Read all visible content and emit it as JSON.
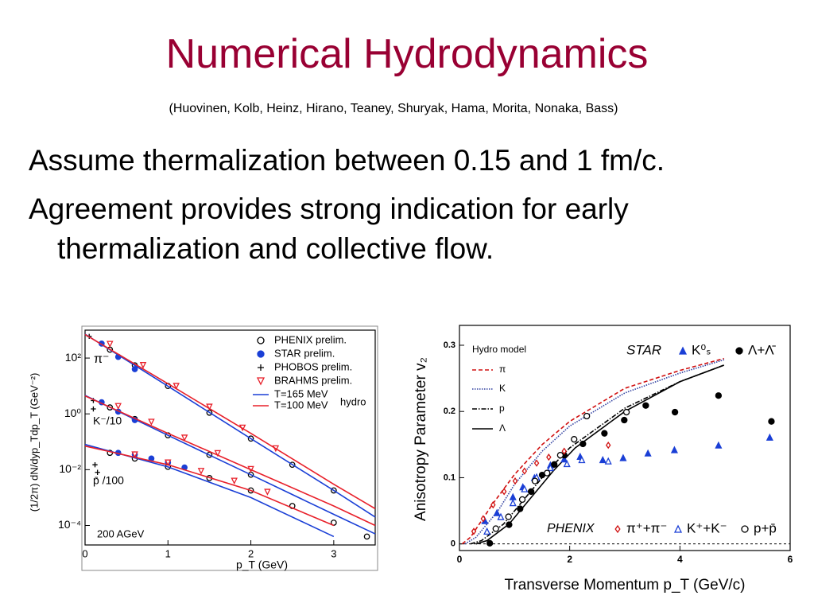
{
  "slide": {
    "title": "Numerical Hydrodynamics",
    "subtitle": "(Huovinen, Kolb, Heinz, Hirano, Teaney, Shuryak, Hama, Morita, Nonaka, Bass)",
    "bullets": [
      "Assume thermalization between 0.15 and 1 fm/c.",
      "Agreement provides strong indication for early thermalization and collective flow."
    ]
  },
  "chart_data": [
    {
      "type": "scatter",
      "log_y": true,
      "legend": "upper right",
      "xlabel": "p_T (GeV)",
      "ylabel": "(1/2π) dN/dyp_Tdp_T (GeV⁻²)",
      "xlim": [
        0,
        3.5
      ],
      "xticks": [
        0,
        1,
        2,
        3
      ],
      "ylim": [
        2e-05,
        1000
      ],
      "yticks": [
        {
          "value": 100,
          "label": "10²"
        },
        {
          "value": 1,
          "label": "10⁰"
        },
        {
          "value": 0.01,
          "label": "10⁻²"
        },
        {
          "value": 0.0001,
          "label": "10⁻⁴"
        }
      ],
      "annotations": [
        "π⁻",
        "K⁻/10",
        "p̄ /100",
        "200 AGeV",
        "hydro"
      ],
      "series": [
        {
          "name": "PHENIX prelim.",
          "color": "#000000",
          "marker": "circle-open",
          "x": [
            0.3,
            0.6,
            1.0,
            1.5,
            2.0,
            2.5,
            3.0,
            0.3,
            0.6,
            1.0,
            1.5,
            2.0,
            0.3,
            0.6,
            1.0,
            1.5,
            2.0,
            2.5,
            3.0,
            3.4
          ],
          "values": [
            200,
            55,
            10,
            1.1,
            0.13,
            0.015,
            0.0018,
            1.7,
            0.65,
            0.17,
            0.034,
            0.0066,
            0.04,
            0.025,
            0.0126,
            0.005,
            0.0018,
            0.0005,
            0.000126,
            4e-05
          ]
        },
        {
          "name": "STAR prelim.",
          "color": "#1a3fd6",
          "marker": "circle-filled",
          "x": [
            0.2,
            0.4,
            0.6,
            0.2,
            0.4,
            0.6,
            0.4,
            0.6,
            0.8,
            1.0,
            1.2
          ],
          "values": [
            330,
            110,
            40,
            2.6,
            1.2,
            0.6,
            0.04,
            0.035,
            0.025,
            0.018,
            0.012
          ]
        },
        {
          "name": "PHOBOS prelim.",
          "color": "#000000",
          "marker": "plus",
          "x": [
            0.05,
            0.1,
            0.1,
            0.12,
            0.15
          ],
          "values": [
            600,
            3,
            1.5,
            0.015,
            0.008
          ]
        },
        {
          "name": "BRAHMS prelim.",
          "color": "#e8202a",
          "marker": "triangle-down-open",
          "x": [
            0.3,
            0.7,
            1.1,
            1.5,
            1.9,
            2.3,
            0.4,
            0.8,
            1.2,
            1.6,
            2.0,
            0.6,
            1.0,
            1.4,
            1.8,
            2.2
          ],
          "values": [
            320,
            56,
            10,
            1.8,
            0.32,
            0.058,
            1.9,
            0.52,
            0.14,
            0.039,
            0.0105,
            0.035,
            0.018,
            0.009,
            0.004,
            0.0016
          ]
        },
        {
          "name": "T=165 MeV",
          "color": "#1a3fd6",
          "line": "solid",
          "x": [
            0,
            1,
            2,
            3,
            3.5,
            null,
            0,
            1,
            2,
            3,
            3.5,
            null,
            0,
            1,
            2,
            3
          ],
          "values": [
            720,
            9.8,
            0.13,
            0.0018,
            0.0002,
            null,
            4.6,
            0.17,
            0.0066,
            0.00025,
            5e-05,
            null,
            0.08,
            0.0126,
            0.001,
            4e-05
          ]
        },
        {
          "name": "T=100 MeV",
          "color": "#e8202a",
          "line": "solid",
          "x": [
            0,
            1,
            2,
            3,
            3.5,
            null,
            0,
            1,
            2,
            3,
            3.5,
            null,
            0,
            1,
            2,
            3
          ],
          "values": [
            700,
            12,
            0.2,
            0.003,
            0.0004,
            null,
            4.4,
            0.2,
            0.01,
            0.0005,
            0.0001,
            null,
            0.07,
            0.015,
            0.0018,
            0.0001
          ]
        }
      ]
    },
    {
      "type": "scatter",
      "xlabel": "Transverse Momentum p_T (GeV/c)",
      "ylabel": "Anisotropy Parameter v₂",
      "xlim": [
        0,
        6
      ],
      "xticks": [
        0,
        2,
        4,
        6
      ],
      "ylim": [
        -0.01,
        0.33
      ],
      "yticks": [
        0,
        0.1,
        0.2,
        0.3
      ],
      "annotations": [
        "Hydro model",
        "STAR",
        "PHENIX"
      ],
      "series": [
        {
          "name": "π",
          "color": "#d01010",
          "line": "dashed",
          "x": [
            0.05,
            0.2,
            0.6,
            1,
            1.5,
            2,
            3,
            4,
            4.8
          ],
          "values": [
            0,
            0.01,
            0.06,
            0.105,
            0.15,
            0.185,
            0.235,
            0.262,
            0.28
          ]
        },
        {
          "name": "K",
          "color": "#3040a0",
          "line": "dotted",
          "x": [
            0.1,
            0.3,
            0.7,
            1,
            1.5,
            2,
            3,
            4,
            4.8
          ],
          "values": [
            0,
            0.01,
            0.05,
            0.09,
            0.14,
            0.178,
            0.228,
            0.258,
            0.278
          ]
        },
        {
          "name": "p",
          "color": "#000000",
          "line": "dashdot",
          "x": [
            0.2,
            0.4,
            0.8,
            1.2,
            1.6,
            2,
            3,
            4,
            4.8
          ],
          "values": [
            0,
            0.005,
            0.03,
            0.07,
            0.11,
            0.145,
            0.205,
            0.245,
            0.27
          ]
        },
        {
          "name": "Λ",
          "color": "#000000",
          "line": "solid",
          "x": [
            0.3,
            0.5,
            0.9,
            1.3,
            1.7,
            2.1,
            3,
            4,
            4.8
          ],
          "values": [
            0,
            0.005,
            0.03,
            0.07,
            0.11,
            0.145,
            0.2,
            0.245,
            0.27
          ]
        },
        {
          "name": "K⁰ₛ",
          "color": "#1a3fd6",
          "marker": "triangle-filled",
          "x": [
            0.46,
            0.68,
            0.97,
            1.15,
            1.36,
            1.65,
            1.9,
            2.19,
            2.6,
            2.97,
            3.42,
            3.9,
            4.7,
            5.63
          ],
          "values": [
            0.035,
            0.047,
            0.071,
            0.086,
            0.1,
            0.119,
            0.128,
            0.132,
            0.127,
            0.13,
            0.137,
            0.142,
            0.149,
            0.161
          ]
        },
        {
          "name": "Λ+Λ̄",
          "color": "#000000",
          "marker": "circle-filled",
          "x": [
            0.55,
            0.9,
            1.1,
            1.3,
            1.5,
            1.72,
            1.9,
            2.24,
            2.63,
            2.99,
            3.38,
            3.91,
            4.7,
            5.66
          ],
          "values": [
            0.001,
            0.029,
            0.053,
            0.079,
            0.104,
            0.12,
            0.134,
            0.151,
            0.167,
            0.187,
            0.209,
            0.199,
            0.224,
            0.185
          ]
        },
        {
          "name": "π⁺+π⁻",
          "color": "#d01010",
          "marker": "diamond-open",
          "x": [
            0.26,
            0.43,
            0.61,
            0.81,
            1.01,
            1.18,
            1.4,
            1.62,
            1.9,
            2.7
          ],
          "values": [
            0.019,
            0.038,
            0.059,
            0.079,
            0.095,
            0.11,
            0.122,
            0.131,
            0.14,
            0.149
          ]
        },
        {
          "name": "K⁺+K⁻",
          "color": "#1a3fd6",
          "marker": "triangle-open",
          "x": [
            0.5,
            0.75,
            0.97,
            1.18,
            1.4,
            1.65,
            1.95,
            2.22,
            2.7
          ],
          "values": [
            0.019,
            0.041,
            0.062,
            0.083,
            0.101,
            0.115,
            0.121,
            0.127,
            0.125
          ]
        },
        {
          "name": "p+p̄",
          "color": "#000000",
          "marker": "circle-open",
          "x": [
            0.66,
            0.89,
            1.14,
            1.37,
            1.59,
            1.83,
            2.08,
            2.31,
            3.03
          ],
          "values": [
            0.023,
            0.041,
            0.067,
            0.095,
            0.107,
            0.134,
            0.158,
            0.193,
            0.199
          ]
        }
      ]
    }
  ]
}
